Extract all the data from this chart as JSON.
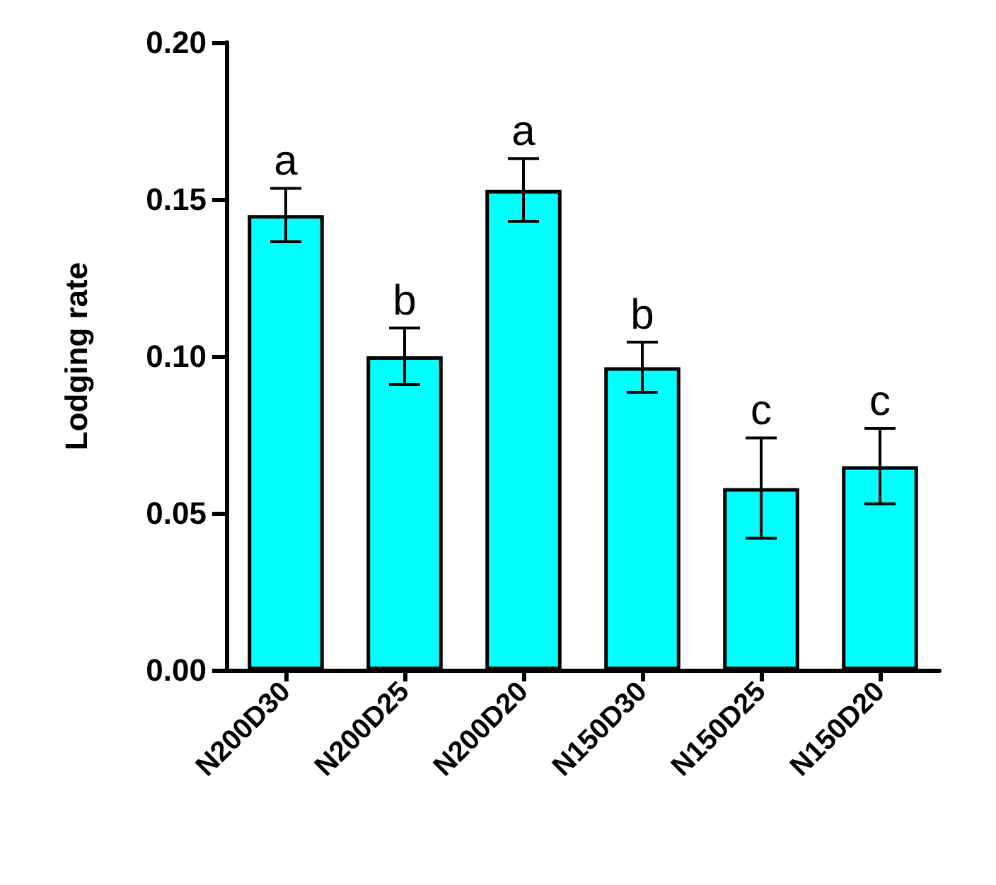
{
  "chart_data": {
    "type": "bar",
    "ylabel": "Lodging rate",
    "categories": [
      "N200D30",
      "N200D25",
      "N200D20",
      "N150D30",
      "N150D25",
      "N150D20"
    ],
    "values": [
      0.145,
      0.1,
      0.153,
      0.0965,
      0.058,
      0.065
    ],
    "errors": [
      0.0085,
      0.009,
      0.01,
      0.008,
      0.016,
      0.012
    ],
    "color": "#00ffff",
    "ylim": [
      0,
      0.2
    ],
    "yticks": [
      {
        "value": 0,
        "label": "0.00"
      },
      {
        "value": 0.05,
        "label": "0.05"
      },
      {
        "value": 0.1,
        "label": "0.10"
      },
      {
        "value": 0.15,
        "label": "0.15"
      },
      {
        "value": 0.2,
        "label": "0.20"
      }
    ],
    "grid": false,
    "annotations": [
      {
        "text": "a",
        "x": "N200D30",
        "y": 0.1535
      },
      {
        "text": "b",
        "x": "N200D25",
        "y": 0.109
      },
      {
        "text": "a",
        "x": "N200D20",
        "y": 0.163
      },
      {
        "text": "b",
        "x": "N150D30",
        "y": 0.1045
      },
      {
        "text": "c",
        "x": "N150D25",
        "y": 0.074
      },
      {
        "text": "c",
        "x": "N150D20",
        "y": 0.077
      }
    ]
  }
}
